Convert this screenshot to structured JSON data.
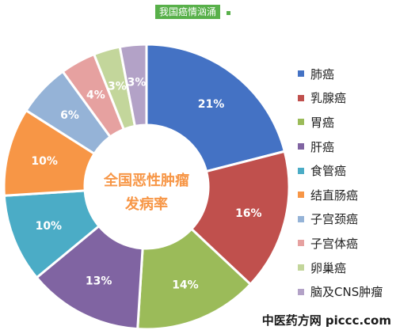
{
  "header": {
    "tag_text": "我国癌情汹涌"
  },
  "watermark": "中医药方网 piccc.com",
  "chart_data": {
    "type": "pie",
    "title": "全国恶性肿瘤\n发病率",
    "center_line1": "全国恶性肿瘤",
    "center_line2": "发病率",
    "categories": [
      "肺癌",
      "乳腺癌",
      "胃癌",
      "肝癌",
      "食管癌",
      "结直肠癌",
      "子宫颈癌",
      "子宫体癌",
      "卵巢癌",
      "脑及CNS肿瘤"
    ],
    "values": [
      21,
      16,
      14,
      13,
      10,
      10,
      6,
      4,
      3,
      3
    ],
    "labels": [
      "21%",
      "16%",
      "14%",
      "13%",
      "10%",
      "10%",
      "6%",
      "4%",
      "3%",
      "3%"
    ],
    "colors": [
      "#4472c4",
      "#c0504d",
      "#9bbb59",
      "#8064a2",
      "#4bacc6",
      "#f79646",
      "#95b3d7",
      "#e6a1a0",
      "#c3d69b",
      "#b3a2c7"
    ],
    "label_colors": [
      "#ffffff",
      "#ffffff",
      "#ffffff",
      "#ffffff",
      "#ffffff",
      "#ffffff",
      "#ffffff",
      "#ffffff",
      "#ffffff",
      "#ffffff"
    ],
    "center_color": "#f79646",
    "legend_position": "right"
  }
}
